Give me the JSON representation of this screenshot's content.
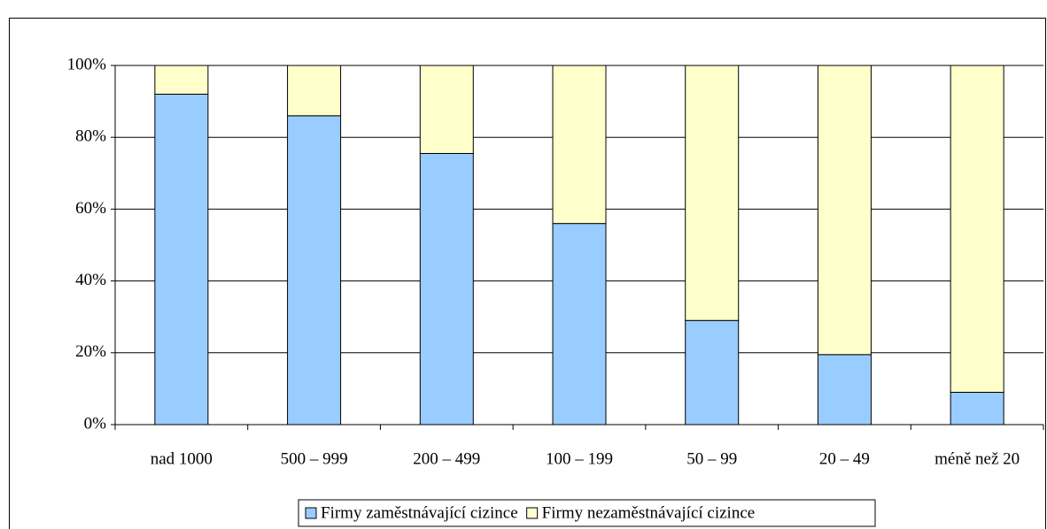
{
  "chart_data": {
    "type": "stacked_bar",
    "categories": [
      "nad 1000",
      "500 – 999",
      "200 – 499",
      "100 – 199",
      "50 – 99",
      "20 – 49",
      "méně než 20"
    ],
    "series": [
      {
        "name": "Firmy zaměstnávající cizince",
        "color": "#99ccff",
        "values": [
          92,
          86,
          75.5,
          56,
          29,
          19.5,
          9
        ]
      },
      {
        "name": "Firmy nezaměstnávající cizince",
        "color": "#ffffcc",
        "values": [
          8,
          14,
          24.5,
          44,
          71,
          80.5,
          91
        ]
      }
    ],
    "ylim": [
      0,
      100
    ],
    "yticks": [
      {
        "value": 0,
        "label": "0%"
      },
      {
        "value": 20,
        "label": "20%"
      },
      {
        "value": 40,
        "label": "40%"
      },
      {
        "value": 60,
        "label": "60%"
      },
      {
        "value": 80,
        "label": "80%"
      },
      {
        "value": 100,
        "label": "100%"
      }
    ],
    "grid": true,
    "legend": "bottom"
  }
}
